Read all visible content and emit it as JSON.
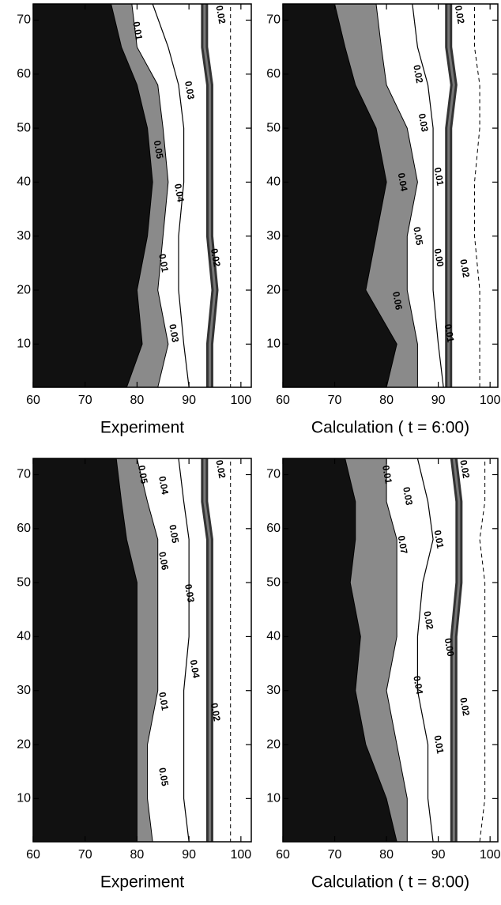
{
  "chart_data": [
    {
      "type": "contour",
      "xlabel": "Experiment",
      "xlim": [
        60,
        102
      ],
      "ylim": [
        2,
        73
      ],
      "xticks": [
        60,
        70,
        80,
        90,
        100
      ],
      "yticks": [
        10,
        20,
        30,
        40,
        50,
        60,
        70
      ],
      "contours": [
        {
          "style": "dark",
          "x": [
            75,
            77,
            80,
            82,
            83,
            82,
            80,
            81,
            78
          ],
          "y": [
            73,
            65,
            58,
            50,
            40,
            30,
            20,
            10,
            2
          ]
        },
        {
          "style": "gray",
          "x": [
            79,
            80,
            84,
            85,
            86,
            85,
            84,
            86,
            84
          ],
          "y": [
            73,
            65,
            58,
            50,
            40,
            30,
            20,
            10,
            2
          ]
        },
        {
          "style": "line",
          "x": [
            83,
            86,
            88,
            89,
            89,
            88,
            88,
            89,
            90
          ],
          "y": [
            73,
            65,
            58,
            50,
            40,
            30,
            20,
            10,
            2
          ]
        },
        {
          "style": "band",
          "x": [
            93,
            93,
            94,
            94,
            94,
            94,
            95,
            94,
            94
          ],
          "y": [
            73,
            65,
            58,
            50,
            40,
            30,
            20,
            10,
            2
          ]
        },
        {
          "style": "dashed",
          "x": [
            98,
            98,
            98,
            98,
            98,
            98,
            98,
            98,
            98
          ],
          "y": [
            73,
            65,
            58,
            50,
            40,
            30,
            20,
            10,
            2
          ]
        }
      ],
      "annotations": [
        {
          "text": "0.01",
          "x": 80,
          "y": 68
        },
        {
          "text": "0.02",
          "x": 96,
          "y": 71
        },
        {
          "text": "0.03",
          "x": 90,
          "y": 57
        },
        {
          "text": "0.05",
          "x": 84,
          "y": 46
        },
        {
          "text": "0.04",
          "x": 88,
          "y": 38
        },
        {
          "text": "0.01",
          "x": 85,
          "y": 25
        },
        {
          "text": "0.03",
          "x": 87,
          "y": 12
        },
        {
          "text": "0.02",
          "x": 95,
          "y": 26
        }
      ]
    },
    {
      "type": "contour",
      "xlabel": "Calculation ( t = 6:00)",
      "xlim": [
        60,
        101.5
      ],
      "ylim": [
        2,
        73
      ],
      "xticks": [
        60,
        70,
        80,
        90,
        100
      ],
      "yticks": [
        10,
        20,
        30,
        40,
        50,
        60,
        70
      ],
      "contours": [
        {
          "style": "dark",
          "x": [
            70,
            72,
            74,
            78,
            80,
            78,
            76,
            82,
            80
          ],
          "y": [
            73,
            65,
            58,
            50,
            40,
            30,
            20,
            10,
            2
          ]
        },
        {
          "style": "gray",
          "x": [
            78,
            79,
            80,
            84,
            86,
            84,
            84,
            86,
            86
          ],
          "y": [
            73,
            65,
            58,
            50,
            40,
            30,
            20,
            10,
            2
          ]
        },
        {
          "style": "line",
          "x": [
            85,
            86,
            88,
            89,
            89,
            89,
            89,
            90,
            91
          ],
          "y": [
            73,
            65,
            58,
            50,
            40,
            30,
            20,
            10,
            2
          ]
        },
        {
          "style": "band",
          "x": [
            92,
            92,
            93,
            92,
            92,
            92,
            92,
            92,
            92
          ],
          "y": [
            73,
            65,
            58,
            50,
            40,
            30,
            20,
            10,
            2
          ]
        },
        {
          "style": "dashed",
          "x": [
            97,
            97,
            98,
            98,
            97,
            97,
            98,
            98,
            98
          ],
          "y": [
            73,
            65,
            58,
            50,
            40,
            30,
            20,
            10,
            2
          ]
        }
      ],
      "annotations": [
        {
          "text": "0.02",
          "x": 94,
          "y": 71
        },
        {
          "text": "0.02",
          "x": 86,
          "y": 60
        },
        {
          "text": "0.03",
          "x": 87,
          "y": 51
        },
        {
          "text": "0.04",
          "x": 83,
          "y": 40
        },
        {
          "text": "0.05",
          "x": 86,
          "y": 30
        },
        {
          "text": "0.06",
          "x": 82,
          "y": 18
        },
        {
          "text": "0.01",
          "x": 90,
          "y": 41
        },
        {
          "text": "0.00",
          "x": 90,
          "y": 26
        },
        {
          "text": "0.02",
          "x": 95,
          "y": 24
        },
        {
          "text": "0.01",
          "x": 92,
          "y": 12
        }
      ]
    },
    {
      "type": "contour",
      "xlabel": "Experiment",
      "xlim": [
        60,
        102
      ],
      "ylim": [
        2,
        73
      ],
      "xticks": [
        60,
        70,
        80,
        90,
        100
      ],
      "yticks": [
        10,
        20,
        30,
        40,
        50,
        60,
        70
      ],
      "contours": [
        {
          "style": "dark",
          "x": [
            76,
            77,
            78,
            80,
            80,
            80,
            80,
            80,
            80
          ],
          "y": [
            73,
            65,
            58,
            50,
            40,
            30,
            20,
            10,
            2
          ]
        },
        {
          "style": "gray",
          "x": [
            80,
            82,
            84,
            84,
            84,
            84,
            82,
            82,
            83
          ],
          "y": [
            73,
            65,
            58,
            50,
            40,
            30,
            20,
            10,
            2
          ]
        },
        {
          "style": "line",
          "x": [
            88,
            89,
            90,
            90,
            90,
            89,
            89,
            89,
            90
          ],
          "y": [
            73,
            65,
            58,
            50,
            40,
            30,
            20,
            10,
            2
          ]
        },
        {
          "style": "band",
          "x": [
            93,
            93,
            94,
            94,
            94,
            94,
            94,
            94,
            94
          ],
          "y": [
            73,
            65,
            58,
            50,
            40,
            30,
            20,
            10,
            2
          ]
        },
        {
          "style": "dashed",
          "x": [
            98,
            98,
            98,
            98,
            98,
            98,
            98,
            98,
            98
          ],
          "y": [
            73,
            65,
            58,
            50,
            40,
            30,
            20,
            10,
            2
          ]
        }
      ],
      "annotations": [
        {
          "text": "0.02",
          "x": 96,
          "y": 71
        },
        {
          "text": "0.05",
          "x": 81,
          "y": 70
        },
        {
          "text": "0.04",
          "x": 85,
          "y": 68
        },
        {
          "text": "0.05",
          "x": 87,
          "y": 59
        },
        {
          "text": "0.06",
          "x": 85,
          "y": 54
        },
        {
          "text": "0.03",
          "x": 90,
          "y": 48
        },
        {
          "text": "0.04",
          "x": 91,
          "y": 34
        },
        {
          "text": "0.01",
          "x": 85,
          "y": 28
        },
        {
          "text": "0.02",
          "x": 95,
          "y": 26
        },
        {
          "text": "0.05",
          "x": 85,
          "y": 14
        }
      ]
    },
    {
      "type": "contour",
      "xlabel": "Calculation ( t = 8:00)",
      "xlim": [
        60,
        101.5
      ],
      "ylim": [
        2,
        73
      ],
      "xticks": [
        60,
        70,
        80,
        90,
        100
      ],
      "yticks": [
        10,
        20,
        30,
        40,
        50,
        60,
        70
      ],
      "contours": [
        {
          "style": "dark",
          "x": [
            72,
            74,
            74,
            73,
            75,
            74,
            76,
            80,
            82
          ],
          "y": [
            73,
            65,
            58,
            50,
            40,
            30,
            20,
            10,
            2
          ]
        },
        {
          "style": "gray",
          "x": [
            80,
            80,
            82,
            82,
            82,
            80,
            82,
            84,
            84
          ],
          "y": [
            73,
            65,
            58,
            50,
            40,
            30,
            20,
            10,
            2
          ]
        },
        {
          "style": "line",
          "x": [
            86,
            88,
            89,
            87,
            86,
            86,
            88,
            88,
            89
          ],
          "y": [
            73,
            65,
            58,
            50,
            40,
            30,
            20,
            10,
            2
          ]
        },
        {
          "style": "band",
          "x": [
            93,
            94,
            94,
            94,
            93,
            93,
            93,
            93,
            93
          ],
          "y": [
            73,
            65,
            58,
            50,
            40,
            30,
            20,
            10,
            2
          ]
        },
        {
          "style": "dashed",
          "x": [
            99,
            99,
            98,
            99,
            99,
            99,
            99,
            99,
            98
          ],
          "y": [
            73,
            65,
            58,
            50,
            40,
            30,
            20,
            10,
            2
          ]
        }
      ],
      "annotations": [
        {
          "text": "0.02",
          "x": 95,
          "y": 71
        },
        {
          "text": "0.01",
          "x": 80,
          "y": 70
        },
        {
          "text": "0.03",
          "x": 84,
          "y": 66
        },
        {
          "text": "0.07",
          "x": 83,
          "y": 57
        },
        {
          "text": "0.01",
          "x": 90,
          "y": 58
        },
        {
          "text": "0.02",
          "x": 88,
          "y": 43
        },
        {
          "text": "0.00",
          "x": 92,
          "y": 38
        },
        {
          "text": "0.04",
          "x": 86,
          "y": 31
        },
        {
          "text": "0.02",
          "x": 95,
          "y": 27
        },
        {
          "text": "0.01",
          "x": 90,
          "y": 20
        }
      ]
    }
  ]
}
